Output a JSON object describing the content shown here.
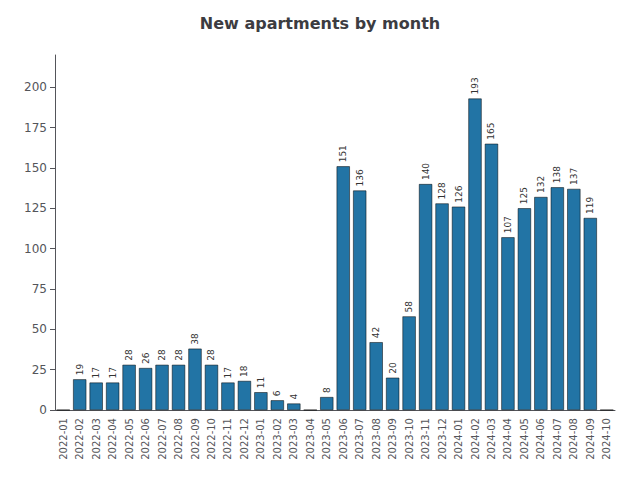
{
  "chart_data": {
    "type": "bar",
    "title": "New apartments by month",
    "categories": [
      "2022-01",
      "2022-02",
      "2022-03",
      "2022-04",
      "2022-05",
      "2022-06",
      "2022-07",
      "2022-08",
      "2022-09",
      "2022-10",
      "2022-11",
      "2022-12",
      "2023-01",
      "2023-02",
      "2023-03",
      "2023-04",
      "2023-05",
      "2023-06",
      "2023-07",
      "2023-08",
      "2023-09",
      "2023-10",
      "2023-11",
      "2023-12",
      "2024-01",
      "2024-02",
      "2024-03",
      "2024-04",
      "2024-05",
      "2024-06",
      "2024-07",
      "2024-08",
      "2024-09",
      "2024-10"
    ],
    "values": [
      0,
      19,
      17,
      17,
      28,
      26,
      28,
      28,
      38,
      28,
      17,
      18,
      11,
      6,
      4,
      0,
      8,
      151,
      136,
      42,
      20,
      58,
      140,
      128,
      126,
      193,
      165,
      107,
      125,
      132,
      138,
      137,
      119,
      0
    ],
    "value_labels": [
      null,
      "19",
      "17",
      "17",
      "28",
      "26",
      "28",
      "28",
      "38",
      "28",
      "17",
      "18",
      "11",
      "6",
      "4",
      null,
      "8",
      "151",
      "136",
      "42",
      "20",
      "58",
      "140",
      "128",
      "126",
      "193",
      "165",
      "107",
      "125",
      "132",
      "138",
      "137",
      "119",
      null
    ],
    "data_labels": true,
    "color": "#2274a5",
    "ylim": [
      0,
      220
    ],
    "yticks": [
      0,
      25,
      50,
      75,
      100,
      125,
      150,
      175,
      200
    ],
    "grid": false
  }
}
